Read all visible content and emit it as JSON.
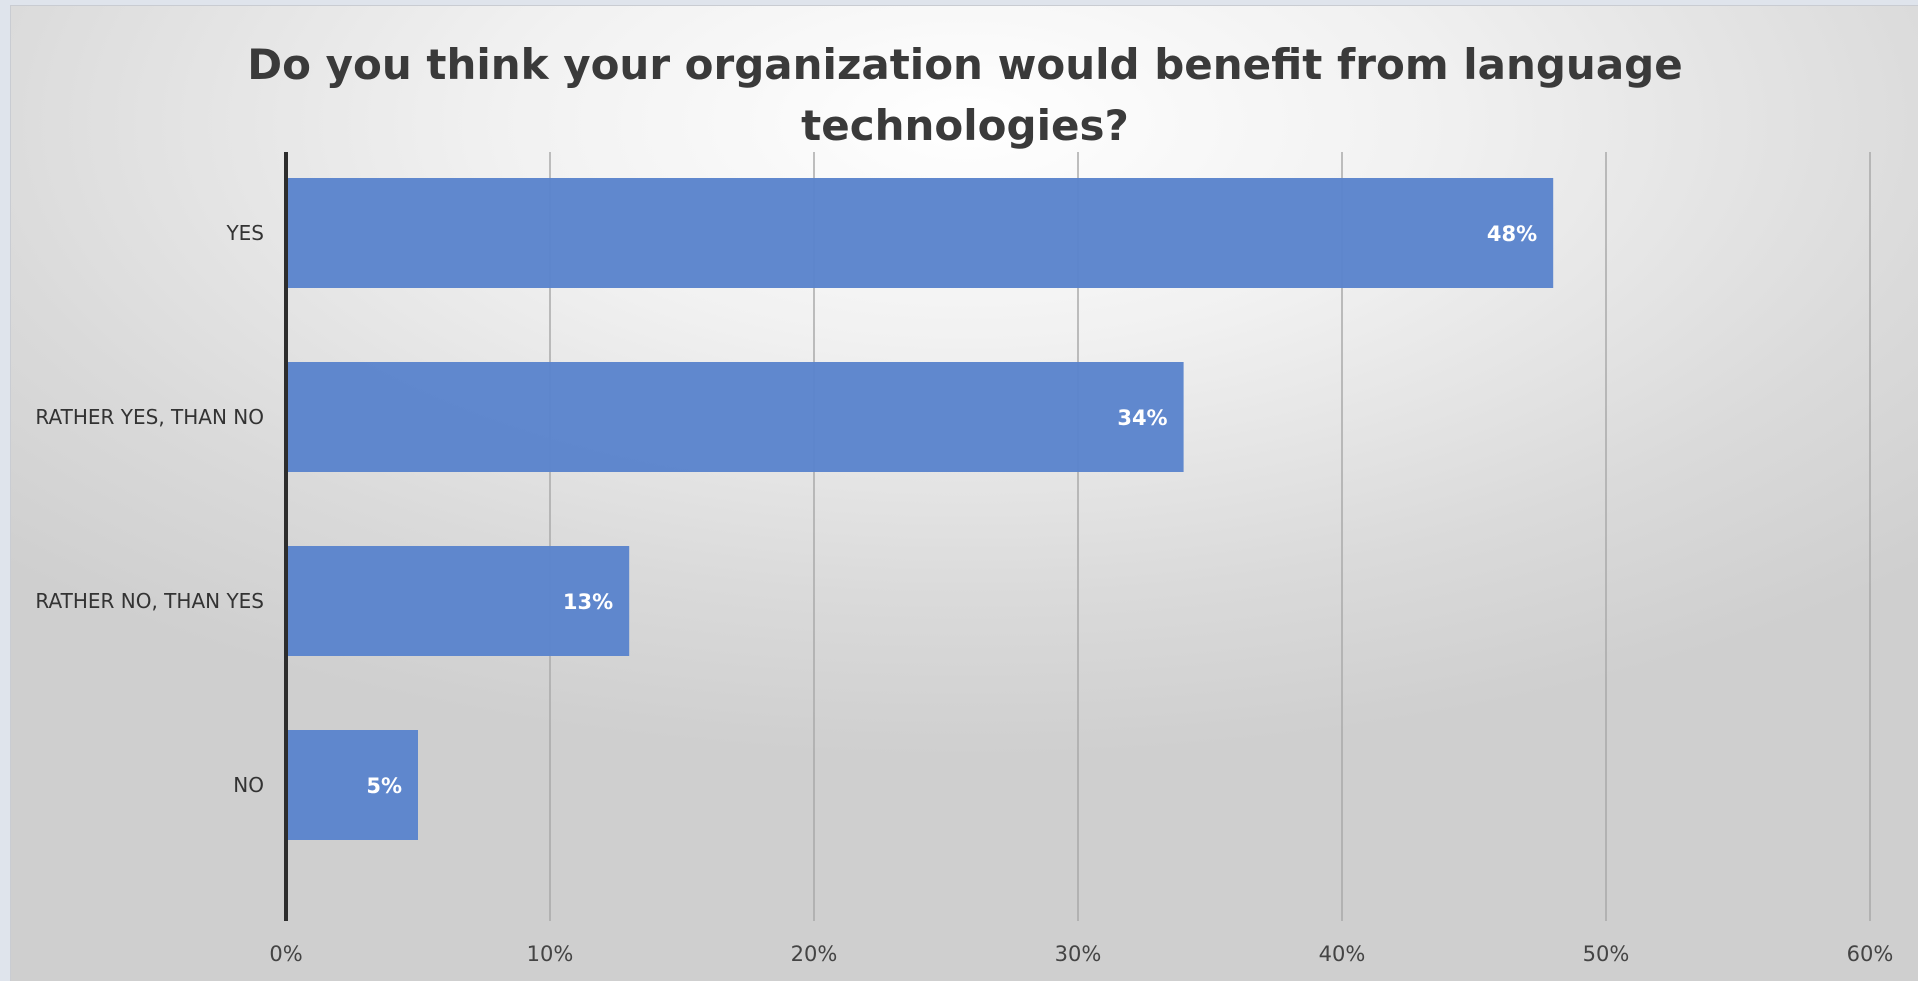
{
  "chart_data": {
    "type": "bar",
    "orientation": "horizontal",
    "title_lines": [
      "Do you think your organization would benefit from language",
      "technologies?"
    ],
    "categories": [
      "YES",
      "RATHER YES, THAN NO",
      "RATHER NO, THAN YES",
      "NO"
    ],
    "values": [
      48,
      34,
      13,
      5
    ],
    "data_labels": [
      "48%",
      "34%",
      "13%",
      "5%"
    ],
    "x_ticks": [
      "0%",
      "10%",
      "20%",
      "30%",
      "40%",
      "50%",
      "60%"
    ],
    "xlim": [
      0,
      60
    ],
    "grid": true,
    "legend": "none",
    "bar_color": "#5b84cc"
  }
}
